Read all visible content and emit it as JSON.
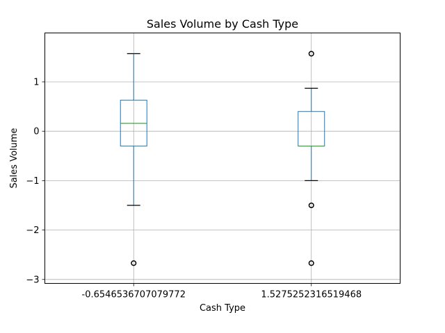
{
  "chart_data": {
    "type": "box",
    "title": "Sales Volume by Cash Type",
    "xlabel": "Cash Type",
    "ylabel": "Sales Volume",
    "ylim": [
      -3.08,
      1.99
    ],
    "yticks": [
      1,
      0,
      -1,
      -2,
      -3
    ],
    "ytick_labels": [
      "1",
      "0",
      "−1",
      "−2",
      "−3"
    ],
    "grid": true,
    "categories": [
      "-0.6546536707079772",
      "1.5275252316519468"
    ],
    "boxes": [
      {
        "category": "-0.6546536707079772",
        "whisker_low": -1.5,
        "q1": -0.3,
        "median": 0.16,
        "q3": 0.63,
        "whisker_high": 1.57,
        "outliers": [
          -2.67
        ]
      },
      {
        "category": "1.5275252316519468",
        "whisker_low": -1.0,
        "q1": -0.3,
        "median": -0.3,
        "q3": 0.4,
        "whisker_high": 0.87,
        "outliers": [
          1.57,
          -1.5,
          -2.67
        ]
      }
    ],
    "colors": {
      "box": "#1f77b4",
      "median": "#2ca02c",
      "whisker": "#1f77b4",
      "cap": "#000000",
      "outlier": "#000000",
      "grid": "#b0b0b0"
    }
  }
}
